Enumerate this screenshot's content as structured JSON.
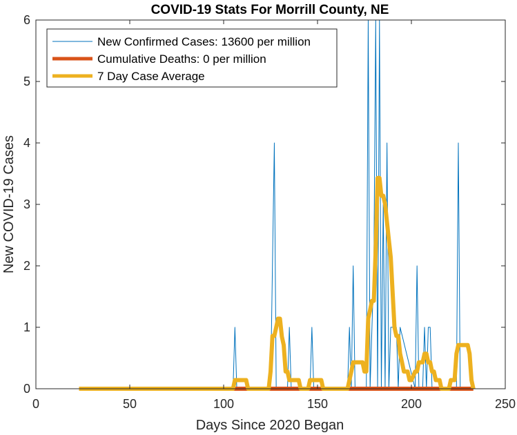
{
  "chart_data": {
    "type": "line",
    "title": "COVID-19 Stats For Morrill County, NE",
    "xlabel": "Days Since 2020 Began",
    "ylabel": "New COVID-19 Cases",
    "xlim": [
      0,
      250
    ],
    "ylim": [
      0,
      6
    ],
    "xticks": [
      0,
      50,
      100,
      150,
      200,
      250
    ],
    "yticks": [
      0,
      1,
      2,
      3,
      4,
      5,
      6
    ],
    "grid": false,
    "legend_position": "top-left",
    "colors": {
      "new_cases": "#0072BD",
      "deaths": "#D95319",
      "avg": "#EDB120",
      "axis": "#262626"
    },
    "series": [
      {
        "name": "New Confirmed Cases: 13600 per million",
        "x": [
          23,
          105,
          106,
          107,
          125,
          126,
          127,
          128,
          134,
          135,
          136,
          146,
          147,
          148,
          166,
          167,
          168,
          169,
          170,
          176,
          177,
          178,
          179,
          180,
          181,
          182,
          183,
          184,
          185,
          186,
          187,
          188,
          189,
          192,
          193,
          194,
          202,
          203,
          204,
          206,
          207,
          208,
          209,
          210,
          211,
          224,
          225,
          226,
          233
        ],
        "values": [
          0,
          0,
          1,
          0,
          0,
          2,
          4,
          0,
          0,
          1,
          0,
          0,
          1,
          0,
          0,
          1,
          0,
          2,
          0,
          0,
          6,
          0,
          1,
          2,
          6,
          0,
          6,
          0,
          3,
          0,
          4,
          0,
          1,
          1,
          0,
          1,
          0,
          2,
          0,
          0,
          1,
          0,
          1,
          1,
          0,
          0,
          4,
          0,
          0
        ]
      },
      {
        "name": "Cumulative Deaths: 0 per million",
        "x": [
          23,
          233
        ],
        "values": [
          0,
          0
        ]
      },
      {
        "name": "7 Day Case Average",
        "x": [
          23,
          105,
          106,
          112,
          113,
          124,
          125,
          126,
          127,
          128,
          129,
          130,
          131,
          132,
          133,
          134,
          135,
          138,
          140,
          141,
          145,
          146,
          152,
          153,
          166,
          167,
          168,
          169,
          170,
          174,
          175,
          176,
          177,
          178,
          179,
          180,
          181,
          182,
          183,
          184,
          185,
          186,
          187,
          188,
          189,
          190,
          191,
          192,
          193,
          194,
          195,
          196,
          198,
          199,
          200,
          202,
          203,
          204,
          205,
          206,
          207,
          208,
          209,
          210,
          211,
          212,
          213,
          215,
          216,
          220,
          221,
          223,
          224,
          225,
          226,
          230,
          231,
          232,
          233
        ],
        "values": [
          0,
          0,
          0.14,
          0.14,
          0,
          0,
          0.28,
          0.86,
          0.86,
          1.0,
          1.14,
          1.14,
          0.85,
          0.71,
          0.28,
          0.28,
          0.14,
          0.14,
          0.14,
          0,
          0,
          0.14,
          0.14,
          0,
          0,
          0.14,
          0.28,
          0.43,
          0.43,
          0.43,
          0.28,
          0.28,
          1.14,
          1.28,
          1.43,
          1.43,
          2.28,
          3.43,
          3.43,
          3.14,
          3.14,
          3.0,
          2.71,
          2.42,
          2.14,
          1.57,
          1.0,
          0.86,
          0.86,
          0.57,
          0.43,
          0.28,
          0.28,
          0.14,
          0.14,
          0.28,
          0.28,
          0.43,
          0.43,
          0.43,
          0.57,
          0.57,
          0.43,
          0.43,
          0.28,
          0.28,
          0.14,
          0.14,
          0,
          0,
          0.14,
          0.14,
          0.57,
          0.71,
          0.71,
          0.71,
          0.57,
          0.14,
          0
        ]
      }
    ]
  }
}
